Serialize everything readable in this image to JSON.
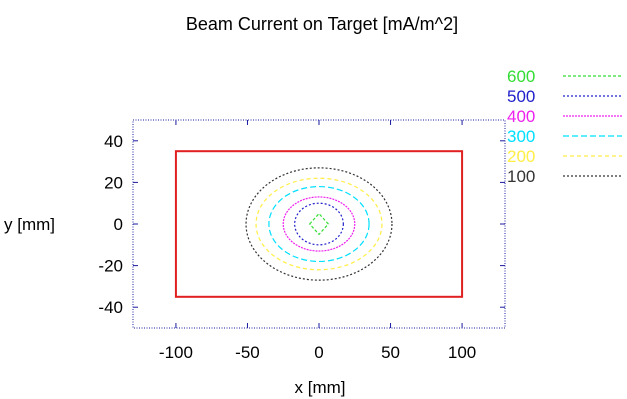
{
  "chart_data": {
    "type": "contour",
    "title": "Beam Current on Target [mA/m^2]",
    "xlabel": "x [mm]",
    "ylabel": "y [mm]",
    "xlim": [
      -130,
      130
    ],
    "ylim": [
      -50,
      50
    ],
    "xticks": [
      -100,
      -50,
      0,
      50,
      100
    ],
    "yticks": [
      -40,
      -20,
      0,
      20,
      40
    ],
    "legend_position": "top-right, outside plot",
    "target_rectangle": {
      "x": [
        -100,
        100
      ],
      "y": [
        -35,
        35
      ],
      "color": "#e02020"
    },
    "series": [
      {
        "name": "600",
        "color": "#33dd33",
        "dash": "3,2",
        "rx": 5,
        "ry": 5
      },
      {
        "name": "500",
        "color": "#2020cc",
        "dash": "2,2",
        "rx": 17,
        "ry": 10
      },
      {
        "name": "400",
        "color": "#ee22ee",
        "dash": "2,1",
        "rx": 25,
        "ry": 13
      },
      {
        "name": "300",
        "color": "#00e0ff",
        "dash": "6,3",
        "rx": 35,
        "ry": 18
      },
      {
        "name": "200",
        "color": "#ffee44",
        "dash": "4,3",
        "rx": 44,
        "ry": 22
      },
      {
        "name": "100",
        "color": "#333333",
        "dash": "2,2",
        "rx": 51,
        "ry": 27
      }
    ]
  }
}
